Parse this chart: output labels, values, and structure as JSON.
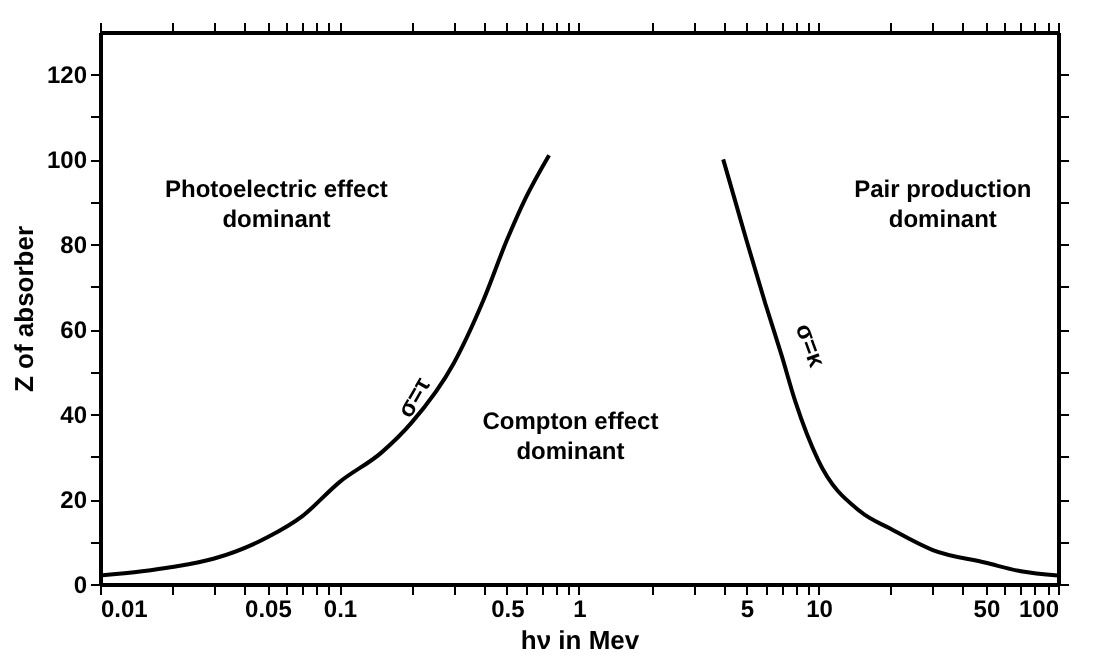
{
  "chart_data": {
    "type": "line",
    "xlabel": "hν in Mev",
    "ylabel": "Z of absorber",
    "log": "x",
    "grid": false,
    "marker": "none",
    "line_style": "solid",
    "xlim": [
      0.01,
      100
    ],
    "ylim": [
      0,
      130
    ],
    "xticks": [
      {
        "value": 0.01,
        "label": "0.01"
      },
      {
        "value": 0.02,
        "label": null
      },
      {
        "value": 0.03,
        "label": null
      },
      {
        "value": 0.04,
        "label": null
      },
      {
        "value": 0.05,
        "label": "0.05"
      },
      {
        "value": 0.06,
        "label": null
      },
      {
        "value": 0.07,
        "label": null
      },
      {
        "value": 0.08,
        "label": null
      },
      {
        "value": 0.09,
        "label": null
      },
      {
        "value": 0.1,
        "label": "0.1"
      },
      {
        "value": 0.2,
        "label": null
      },
      {
        "value": 0.3,
        "label": null
      },
      {
        "value": 0.4,
        "label": null
      },
      {
        "value": 0.5,
        "label": "0.5"
      },
      {
        "value": 0.6,
        "label": null
      },
      {
        "value": 0.7,
        "label": null
      },
      {
        "value": 0.8,
        "label": null
      },
      {
        "value": 0.9,
        "label": null
      },
      {
        "value": 1,
        "label": "1"
      },
      {
        "value": 2,
        "label": null
      },
      {
        "value": 3,
        "label": null
      },
      {
        "value": 4,
        "label": null
      },
      {
        "value": 5,
        "label": "5"
      },
      {
        "value": 6,
        "label": null
      },
      {
        "value": 7,
        "label": null
      },
      {
        "value": 8,
        "label": null
      },
      {
        "value": 9,
        "label": null
      },
      {
        "value": 10,
        "label": "10"
      },
      {
        "value": 20,
        "label": null
      },
      {
        "value": 30,
        "label": null
      },
      {
        "value": 40,
        "label": null
      },
      {
        "value": 50,
        "label": "50"
      },
      {
        "value": 60,
        "label": null
      },
      {
        "value": 70,
        "label": null
      },
      {
        "value": 80,
        "label": null
      },
      {
        "value": 90,
        "label": null
      },
      {
        "value": 100,
        "label": "100"
      }
    ],
    "yticks": [
      0,
      {
        "value": 10,
        "label": null
      },
      20,
      {
        "value": 30,
        "label": null
      },
      40,
      {
        "value": 50,
        "label": null
      },
      60,
      {
        "value": 70,
        "label": null
      },
      80,
      {
        "value": 90,
        "label": null
      },
      100,
      {
        "value": 110,
        "label": null
      },
      120
    ],
    "series": [
      {
        "color": "#000000",
        "x": [
          0.01,
          0.015,
          0.02,
          0.03,
          0.05,
          0.07,
          0.1,
          0.15,
          0.2,
          0.3,
          0.4,
          0.5,
          0.6,
          0.75
        ],
        "values": [
          2,
          3,
          4,
          6,
          11,
          16,
          24,
          31,
          38,
          52,
          67,
          81,
          91,
          101
        ]
      },
      {
        "color": "#000000",
        "x": [
          4,
          4.5,
          5,
          6,
          7,
          8,
          10,
          15,
          20,
          30,
          50,
          70,
          100
        ],
        "values": [
          100,
          90,
          81,
          66,
          54,
          43,
          29,
          17,
          13,
          8,
          5,
          3,
          2
        ]
      }
    ],
    "annotations": [
      "Photoelectric effect\ndominant",
      "Compton effect\ndominant",
      "Pair production\ndominant",
      "σ=τ",
      "σ=κ"
    ]
  }
}
